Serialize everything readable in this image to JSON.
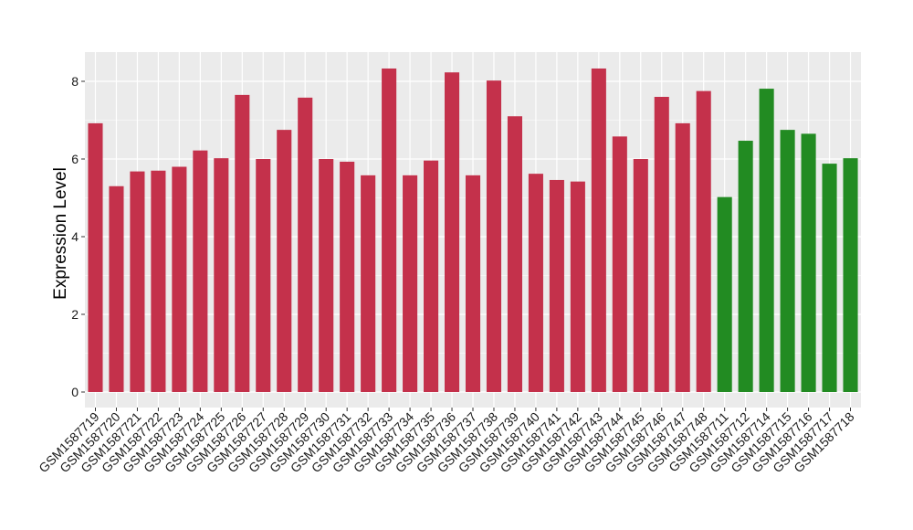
{
  "chart_data": {
    "type": "bar",
    "title": "",
    "xlabel": "",
    "ylabel": "Expression Level",
    "ylim": [
      0,
      8.75
    ],
    "yticks": [
      0,
      2,
      4,
      6,
      8
    ],
    "grid": true,
    "legend": "none",
    "colors": {
      "group_a": "#c4314b",
      "group_b": "#228b22",
      "panel": "#ebebeb",
      "gridline": "#ffffff"
    },
    "categories": [
      "GSM1587719",
      "GSM1587720",
      "GSM1587721",
      "GSM1587722",
      "GSM1587723",
      "GSM1587724",
      "GSM1587725",
      "GSM1587726",
      "GSM1587727",
      "GSM1587728",
      "GSM1587729",
      "GSM1587730",
      "GSM1587731",
      "GSM1587732",
      "GSM1587733",
      "GSM1587734",
      "GSM1587735",
      "GSM1587736",
      "GSM1587737",
      "GSM1587738",
      "GSM1587739",
      "GSM1587740",
      "GSM1587741",
      "GSM1587742",
      "GSM1587743",
      "GSM1587744",
      "GSM1587745",
      "GSM1587746",
      "GSM1587747",
      "GSM1587748",
      "GSM1587711",
      "GSM1587712",
      "GSM1587714",
      "GSM1587715",
      "GSM1587716",
      "GSM1587717",
      "GSM1587718"
    ],
    "values": [
      6.92,
      5.3,
      5.68,
      5.7,
      5.8,
      6.22,
      6.02,
      7.65,
      6.0,
      6.75,
      7.58,
      6.0,
      5.93,
      5.58,
      8.33,
      5.58,
      5.96,
      8.23,
      5.58,
      8.02,
      7.1,
      5.62,
      5.46,
      5.42,
      8.33,
      6.58,
      6.0,
      7.6,
      6.92,
      7.75,
      5.02,
      6.47,
      7.81,
      6.75,
      6.65,
      5.88,
      6.02
    ],
    "groups": [
      "a",
      "a",
      "a",
      "a",
      "a",
      "a",
      "a",
      "a",
      "a",
      "a",
      "a",
      "a",
      "a",
      "a",
      "a",
      "a",
      "a",
      "a",
      "a",
      "a",
      "a",
      "a",
      "a",
      "a",
      "a",
      "a",
      "a",
      "a",
      "a",
      "a",
      "b",
      "b",
      "b",
      "b",
      "b",
      "b",
      "b"
    ]
  }
}
